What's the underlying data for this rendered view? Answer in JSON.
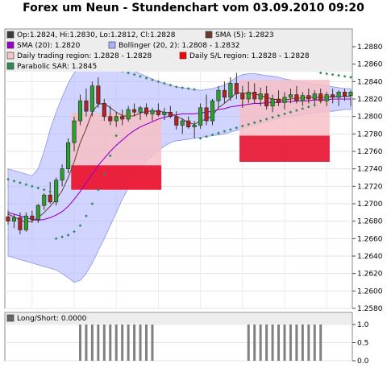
{
  "chart_data": {
    "type": "candlestick",
    "title": "Forex um Neun - Stundenchart vom 03.09.2010 09:20",
    "legend": [
      {
        "key": "ohlc",
        "label": "Op:1.2824, Hi:1.2830, Lo:1.2812, Cl:1.2828",
        "color": "#3d3d3d"
      },
      {
        "key": "sma5",
        "label": "SMA (5): 1.2823",
        "color": "#6b3a2a"
      },
      {
        "key": "sma20",
        "label": "SMA (20): 1.2820",
        "color": "#9900cc"
      },
      {
        "key": "bollinger",
        "label": "Bollinger (20, 2): 1.2808 - 1.2832",
        "color": "#aab0ff"
      },
      {
        "key": "daily_region",
        "label": "Daily trading region: 1.2828 - 1.2828",
        "color": "#f5c4c8"
      },
      {
        "key": "daily_sl",
        "label": "Daily S/L region: 1.2828 - 1.2828",
        "color": "#ff0000"
      },
      {
        "key": "sar",
        "label": "Parabolic SAR: 1.2845",
        "color": "#2e8b57"
      }
    ],
    "yaxis": {
      "min": 1.258,
      "max": 1.288,
      "ticks": [
        "1.2880",
        "1.2860",
        "1.2840",
        "1.2820",
        "1.2800",
        "1.2780",
        "1.2760",
        "1.2740",
        "1.2720",
        "1.2700",
        "1.2680",
        "1.2660",
        "1.2640",
        "1.2620",
        "1.2600",
        "1.2580"
      ]
    },
    "candles": [
      [
        1.2685,
        1.2692,
        1.2676,
        1.268
      ],
      [
        1.268,
        1.2688,
        1.2672,
        1.2684
      ],
      [
        1.2684,
        1.269,
        1.2665,
        1.267
      ],
      [
        1.267,
        1.269,
        1.2668,
        1.2686
      ],
      [
        1.2686,
        1.2692,
        1.2678,
        1.2682
      ],
      [
        1.2682,
        1.27,
        1.2678,
        1.2698
      ],
      [
        1.2698,
        1.2712,
        1.2693,
        1.271
      ],
      [
        1.271,
        1.2725,
        1.27,
        1.2702
      ],
      [
        1.2702,
        1.273,
        1.2698,
        1.2727
      ],
      [
        1.2727,
        1.2745,
        1.272,
        1.274
      ],
      [
        1.274,
        1.2775,
        1.2735,
        1.277
      ],
      [
        1.277,
        1.28,
        1.276,
        1.2795
      ],
      [
        1.2795,
        1.2825,
        1.279,
        1.2818
      ],
      [
        1.2818,
        1.2832,
        1.28,
        1.2806
      ],
      [
        1.2806,
        1.284,
        1.28,
        1.2835
      ],
      [
        1.2835,
        1.2845,
        1.281,
        1.2815
      ],
      [
        1.2815,
        1.282,
        1.2795,
        1.28
      ],
      [
        1.28,
        1.2812,
        1.279,
        1.2795
      ],
      [
        1.2795,
        1.2805,
        1.2788,
        1.28
      ],
      [
        1.28,
        1.2808,
        1.279,
        1.2797
      ],
      [
        1.2797,
        1.2812,
        1.2794,
        1.2808
      ],
      [
        1.2808,
        1.2815,
        1.28,
        1.2805
      ],
      [
        1.2805,
        1.2812,
        1.2796,
        1.281
      ],
      [
        1.281,
        1.2815,
        1.28,
        1.2803
      ],
      [
        1.2803,
        1.281,
        1.2795,
        1.2807
      ],
      [
        1.2807,
        1.2815,
        1.28,
        1.2802
      ],
      [
        1.2802,
        1.281,
        1.2796,
        1.2805
      ],
      [
        1.2805,
        1.2812,
        1.2798,
        1.28
      ],
      [
        1.28,
        1.2806,
        1.2785,
        1.279
      ],
      [
        1.279,
        1.2798,
        1.278,
        1.2795
      ],
      [
        1.2795,
        1.28,
        1.2786,
        1.2788
      ],
      [
        1.2788,
        1.2795,
        1.2775,
        1.279
      ],
      [
        1.279,
        1.2815,
        1.2786,
        1.281
      ],
      [
        1.281,
        1.2825,
        1.279,
        1.2795
      ],
      [
        1.2795,
        1.282,
        1.279,
        1.2818
      ],
      [
        1.2818,
        1.2835,
        1.281,
        1.283
      ],
      [
        1.283,
        1.284,
        1.2815,
        1.2822
      ],
      [
        1.2822,
        1.2845,
        1.2818,
        1.2838
      ],
      [
        1.2838,
        1.285,
        1.282,
        1.2826
      ],
      [
        1.2826,
        1.2835,
        1.281,
        1.282
      ],
      [
        1.282,
        1.284,
        1.2815,
        1.2828
      ],
      [
        1.2828,
        1.2838,
        1.2815,
        1.282
      ],
      [
        1.282,
        1.2833,
        1.2812,
        1.2826
      ],
      [
        1.2826,
        1.2835,
        1.2808,
        1.2812
      ],
      [
        1.2812,
        1.2825,
        1.2805,
        1.282
      ],
      [
        1.282,
        1.283,
        1.2812,
        1.2816
      ],
      [
        1.2816,
        1.2828,
        1.2808,
        1.2822
      ],
      [
        1.2822,
        1.2832,
        1.2815,
        1.2825
      ],
      [
        1.2825,
        1.2835,
        1.2815,
        1.2818
      ],
      [
        1.2818,
        1.2828,
        1.2812,
        1.2824
      ],
      [
        1.2824,
        1.2832,
        1.2815,
        1.282
      ],
      [
        1.282,
        1.283,
        1.2812,
        1.2826
      ],
      [
        1.2826,
        1.2832,
        1.2815,
        1.2818
      ],
      [
        1.2818,
        1.2828,
        1.2812,
        1.2825
      ],
      [
        1.2825,
        1.2832,
        1.2815,
        1.2822
      ],
      [
        1.2822,
        1.283,
        1.2812,
        1.2828
      ],
      [
        1.2828,
        1.2832,
        1.2818,
        1.2823
      ],
      [
        1.2824,
        1.283,
        1.2812,
        1.2828
      ]
    ],
    "sma5": [
      1.2688,
      1.2685,
      1.2681,
      1.2679,
      1.268,
      1.2684,
      1.269,
      1.2697,
      1.2705,
      1.2715,
      1.273,
      1.2748,
      1.277,
      1.2786,
      1.2805,
      1.2814,
      1.2815,
      1.281,
      1.2805,
      1.2801,
      1.28,
      1.2801,
      1.2804,
      1.2806,
      1.2806,
      1.2806,
      1.2805,
      1.2804,
      1.28,
      1.2797,
      1.2793,
      1.2791,
      1.2795,
      1.2797,
      1.2801,
      1.281,
      1.2815,
      1.2821,
      1.2827,
      1.2827,
      1.2826,
      1.2826,
      1.2824,
      1.2822,
      1.282,
      1.2819,
      1.2819,
      1.282,
      1.2821,
      1.2821,
      1.2822,
      1.2822,
      1.2822,
      1.2822,
      1.2823,
      1.2823,
      1.2823,
      1.2823
    ],
    "sma20": [
      1.269,
      1.2688,
      1.2686,
      1.2684,
      1.2682,
      1.2681,
      1.2682,
      1.2684,
      1.2687,
      1.2691,
      1.2697,
      1.2705,
      1.2714,
      1.2724,
      1.2734,
      1.2744,
      1.2752,
      1.276,
      1.2767,
      1.2773,
      1.2779,
      1.2784,
      1.2788,
      1.2791,
      1.2794,
      1.2797,
      1.2799,
      1.2801,
      1.2802,
      1.2803,
      1.2803,
      1.2803,
      1.2804,
      1.2805,
      1.2806,
      1.2808,
      1.2809,
      1.2811,
      1.2812,
      1.2813,
      1.2814,
      1.2815,
      1.2815,
      1.2816,
      1.2816,
      1.2816,
      1.2817,
      1.2817,
      1.2818,
      1.2818,
      1.2818,
      1.2819,
      1.2819,
      1.2819,
      1.282,
      1.282,
      1.282,
      1.282
    ],
    "bb_upper": [
      1.274,
      1.2738,
      1.2736,
      1.2734,
      1.2732,
      1.274,
      1.276,
      1.2785,
      1.2805,
      1.2822,
      1.2838,
      1.285,
      1.2858,
      1.2862,
      1.2864,
      1.2864,
      1.2863,
      1.2862,
      1.286,
      1.2858,
      1.2855,
      1.2852,
      1.2849,
      1.2846,
      1.2843,
      1.284,
      1.2838,
      1.2836,
      1.2834,
      1.2833,
      1.2832,
      1.2831,
      1.283,
      1.2831,
      1.2832,
      1.2834,
      1.2836,
      1.284,
      1.2845,
      1.2848,
      1.2849,
      1.2849,
      1.2848,
      1.2847,
      1.2846,
      1.2845,
      1.2843,
      1.2842,
      1.284,
      1.2839,
      1.2838,
      1.2837,
      1.2836,
      1.2835,
      1.2834,
      1.2833,
      1.2832,
      1.2832
    ],
    "bb_lower": [
      1.264,
      1.2638,
      1.2636,
      1.2634,
      1.2632,
      1.263,
      1.2628,
      1.2626,
      1.2624,
      1.262,
      1.2615,
      1.261,
      1.2612,
      1.262,
      1.2632,
      1.2646,
      1.266,
      1.2675,
      1.269,
      1.2705,
      1.2718,
      1.273,
      1.274,
      1.2748,
      1.2755,
      1.2761,
      1.2766,
      1.277,
      1.2772,
      1.2773,
      1.2774,
      1.2775,
      1.2776,
      1.2777,
      1.2778,
      1.2779,
      1.278,
      1.2782,
      1.2784,
      1.2786,
      1.2788,
      1.279,
      1.2792,
      1.2794,
      1.2796,
      1.2798,
      1.2799,
      1.28,
      1.2801,
      1.2802,
      1.2803,
      1.2804,
      1.2805,
      1.2806,
      1.2806,
      1.2807,
      1.2808,
      1.2808
    ],
    "sar": [
      1.2728,
      1.2726,
      1.2724,
      1.2722,
      1.272,
      1.2718,
      1.2716,
      1.2714,
      1.266,
      1.2662,
      1.2664,
      1.2668,
      1.2675,
      1.2686,
      1.27,
      1.2716,
      1.2734,
      1.2755,
      1.2778,
      1.2852,
      1.285,
      1.2848,
      1.2846,
      1.2844,
      1.2842,
      1.284,
      1.2838,
      1.2836,
      1.2834,
      1.2833,
      1.2832,
      1.2831,
      1.2775,
      1.2777,
      1.2779,
      1.2781,
      1.2783,
      1.2785,
      1.2787,
      1.2789,
      1.2791,
      1.2793,
      1.2795,
      1.2797,
      1.2799,
      1.2801,
      1.2803,
      1.2805,
      1.2807,
      1.2809,
      1.2811,
      1.2813,
      1.285,
      1.2849,
      1.2848,
      1.2847,
      1.2846,
      1.2845
    ],
    "daily_regions": [
      {
        "start": 11,
        "end": 25,
        "low": 1.2716,
        "high": 1.2804
      },
      {
        "start": 39,
        "end": 53,
        "low": 1.2778,
        "high": 1.2842
      }
    ],
    "daily_sl_regions": [
      {
        "start": 11,
        "end": 25,
        "low": 1.2716,
        "high": 1.2744
      },
      {
        "start": 39,
        "end": 53,
        "low": 1.2748,
        "high": 1.2778
      }
    ],
    "sub_panel": {
      "legend": "Long/Short: 0.0000",
      "yticks": [
        "1.0",
        "0.5",
        "0.0"
      ],
      "ymin": 0,
      "ymax": 1,
      "bar_groups": [
        {
          "start": 12,
          "end": 24,
          "value": 1
        },
        {
          "start": 40,
          "end": 52,
          "value": 1
        }
      ]
    }
  }
}
